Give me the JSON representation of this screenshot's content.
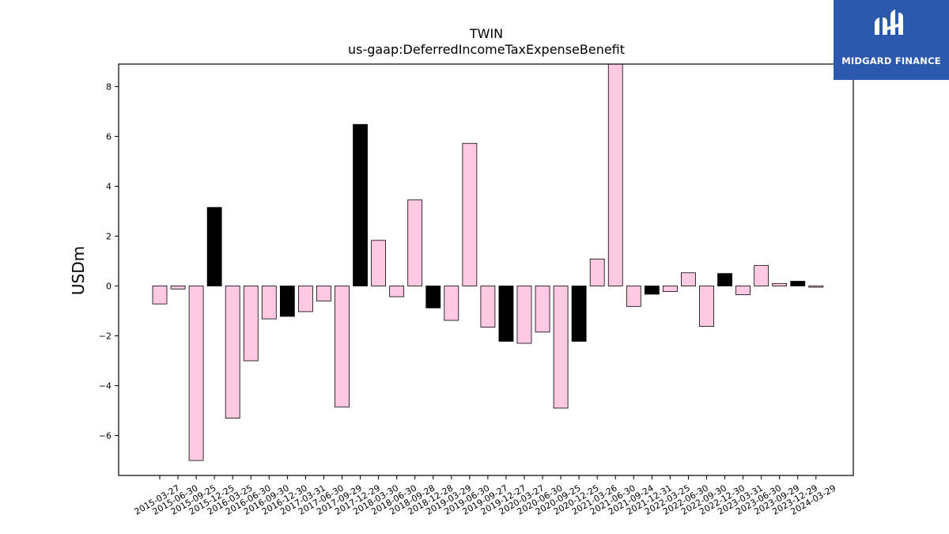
{
  "chart_data": {
    "type": "bar",
    "title": "TWIN",
    "subtitle": "us-gaap:DeferredIncomeTaxExpenseBenefit",
    "ylabel": "USDm",
    "xlabel": "",
    "ylim": [
      -7.6,
      8.9
    ],
    "yticks": [
      8,
      6,
      4,
      2,
      0,
      -2,
      -4,
      -6
    ],
    "yticklabels": [
      "8",
      "6",
      "4",
      "2",
      "0",
      "−2",
      "−4",
      "−6"
    ],
    "grid": false,
    "categories": [
      "2015-03-27",
      "2015-06-30",
      "2015-09-25",
      "2015-12-25",
      "2016-03-25",
      "2016-06-30",
      "2016-09-30",
      "2016-12-30",
      "2017-03-31",
      "2017-06-30",
      "2017-09-29",
      "2017-12-29",
      "2018-03-30",
      "2018-06-30",
      "2018-09-28",
      "2018-12-28",
      "2019-03-29",
      "2019-06-30",
      "2019-09-27",
      "2019-12-27",
      "2020-03-27",
      "2020-06-30",
      "2020-09-25",
      "2020-12-25",
      "2021-03-26",
      "2021-06-30",
      "2021-09-24",
      "2021-12-31",
      "2022-03-25",
      "2022-06-30",
      "2022-09-30",
      "2022-12-30",
      "2023-03-31",
      "2023-06-30",
      "2023-09-29",
      "2023-12-29",
      "2024-03-29"
    ],
    "values": [
      -0.72,
      -0.12,
      -7.0,
      3.15,
      -5.3,
      -3.0,
      -1.32,
      -1.22,
      -1.03,
      -0.6,
      -4.85,
      6.48,
      1.83,
      -0.43,
      3.45,
      -0.88,
      -1.38,
      5.72,
      -1.65,
      -2.22,
      -2.3,
      -1.85,
      -4.9,
      -2.22,
      1.08,
      9.0,
      -0.82,
      -0.33,
      -0.22,
      0.53,
      -1.62,
      0.5,
      -0.35,
      0.82,
      0.1,
      0.19,
      -0.05
    ],
    "highlight": [
      false,
      false,
      false,
      true,
      false,
      false,
      false,
      true,
      false,
      false,
      false,
      true,
      false,
      false,
      false,
      true,
      false,
      false,
      false,
      true,
      false,
      false,
      false,
      true,
      false,
      false,
      false,
      true,
      false,
      false,
      false,
      true,
      false,
      false,
      false,
      true,
      false
    ],
    "colors": {
      "normal": "#ffc9e4",
      "highlight": "#000000",
      "edge": "#000000"
    }
  },
  "logo": {
    "text": "MIDGARD FINANCE",
    "background": "#2b59ad",
    "foreground": "#ffffff"
  }
}
